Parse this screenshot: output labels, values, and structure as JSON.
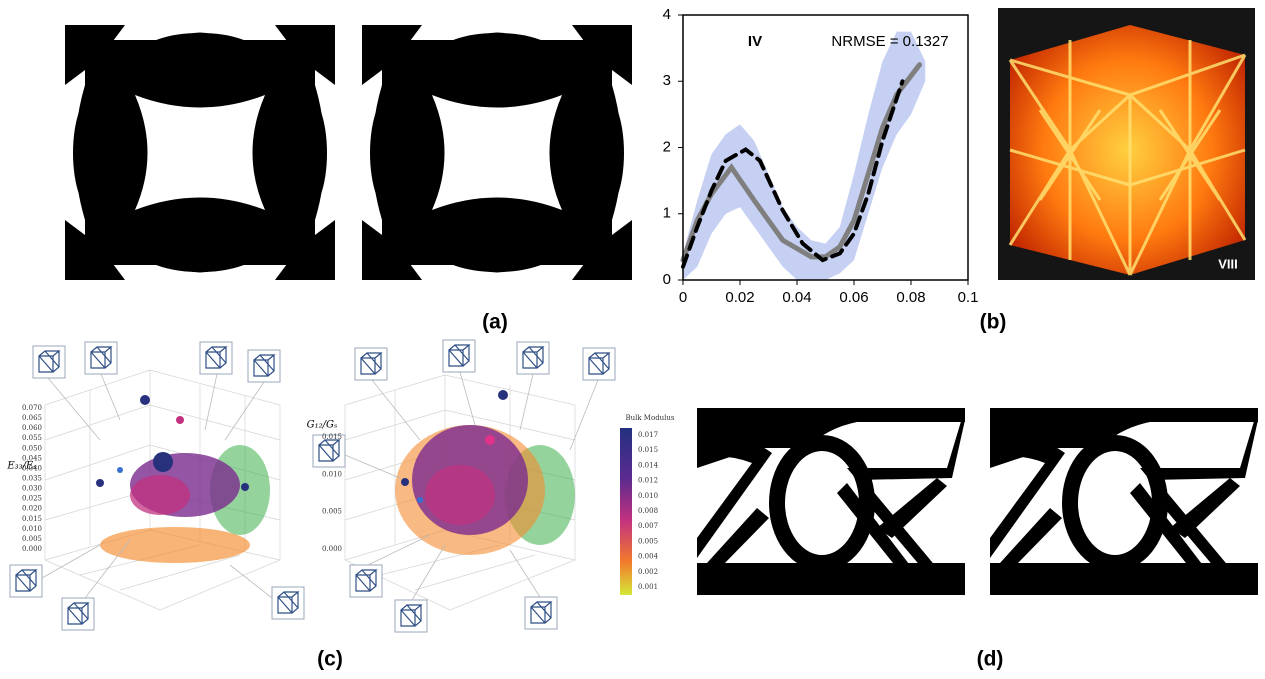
{
  "chart_data": {
    "type": "line",
    "xlim": [
      0,
      0.1
    ],
    "ylim": [
      0,
      4
    ],
    "xticks": [
      0,
      0.02,
      0.04,
      0.06,
      0.08,
      0.1
    ],
    "yticks": [
      0,
      1,
      2,
      3,
      4
    ],
    "annotations": [
      "IV",
      "NRMSE = 0.1327"
    ],
    "band": {
      "color": "#c6d0f2",
      "x": [
        0,
        0.005,
        0.01,
        0.015,
        0.02,
        0.025,
        0.03,
        0.035,
        0.04,
        0.045,
        0.05,
        0.055,
        0.06,
        0.065,
        0.07,
        0.075,
        0.08,
        0.085
      ],
      "upper": [
        0.4,
        1.2,
        1.9,
        2.2,
        2.35,
        2.1,
        1.6,
        1.1,
        0.8,
        0.6,
        0.55,
        0.8,
        1.6,
        2.5,
        3.3,
        3.75,
        3.75,
        3.3
      ],
      "lower": [
        0,
        0.2,
        0.7,
        1.0,
        1.1,
        0.8,
        0.5,
        0.2,
        0.0,
        0.0,
        0.0,
        0.1,
        0.3,
        1.0,
        1.7,
        2.2,
        2.5,
        3.0
      ]
    },
    "series": [
      {
        "color": "#7f7f7f",
        "dashed": false,
        "x": [
          0,
          0.005,
          0.01,
          0.017,
          0.025,
          0.035,
          0.045,
          0.05,
          0.055,
          0.06,
          0.065,
          0.07,
          0.075,
          0.083
        ],
        "values": [
          0.3,
          0.9,
          1.3,
          1.7,
          1.2,
          0.6,
          0.35,
          0.35,
          0.5,
          0.9,
          1.6,
          2.3,
          2.8,
          3.25
        ]
      },
      {
        "color": "#000000",
        "dashed": true,
        "x": [
          0,
          0.005,
          0.01,
          0.015,
          0.022,
          0.027,
          0.035,
          0.042,
          0.049,
          0.055,
          0.06,
          0.065,
          0.07,
          0.077
        ],
        "values": [
          0.2,
          0.8,
          1.35,
          1.8,
          1.97,
          1.8,
          1.05,
          0.55,
          0.3,
          0.4,
          0.7,
          1.3,
          2.1,
          3.0
        ]
      }
    ]
  },
  "figure": {
    "panel_labels": [
      "(a)",
      "(b)",
      "(c)",
      "(d)"
    ],
    "photo_label": "VIII",
    "panel_c": {
      "left_axis_label": "E₃₃/Eₛ",
      "left_ticks": [
        "0.070",
        "0.065",
        "0.060",
        "0.055",
        "0.050",
        "0.045",
        "0.040",
        "0.035",
        "0.030",
        "0.025",
        "0.020",
        "0.015",
        "0.010",
        "0.005",
        "0.000"
      ],
      "right_axis_label": "G₁₂/Gₛ",
      "right_ticks": [
        "0.015",
        "0.010",
        "0.005",
        "0.000"
      ],
      "colorbar_title": "Bulk Modulus",
      "colorbar_ticks": [
        "0.017",
        "0.015",
        "0.014",
        "0.012",
        "0.010",
        "0.008",
        "0.007",
        "0.005",
        "0.004",
        "0.002",
        "0.001"
      ]
    }
  }
}
